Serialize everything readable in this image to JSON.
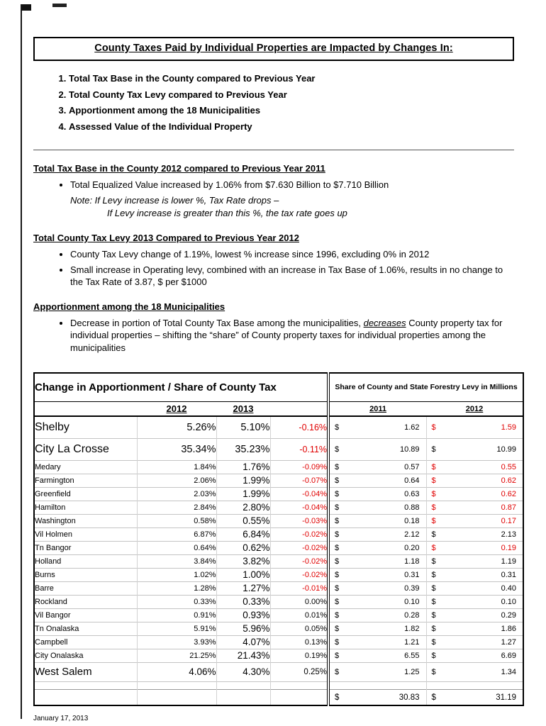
{
  "title": "County Taxes Paid by Individual Properties are Impacted by Changes In:",
  "impact_list": [
    "Total Tax Base in the County compared to Previous Year",
    "Total County Tax Levy compared to Previous Year",
    "Apportionment among the 18 Municipalities",
    "Assessed Value of the Individual Property"
  ],
  "tax_base": {
    "heading": "Total Tax Base in the County 2012 compared to Previous Year 2011",
    "bullet": "Total Equalized Value increased by 1.06% from $7.630 Billion to $7.710 Billion",
    "note_line1": "Note:  If Levy increase is lower %, Tax Rate drops –",
    "note_line2": "If Levy increase is greater than this %, the tax rate goes up"
  },
  "tax_levy": {
    "heading": "Total County Tax Levy 2013 Compared to Previous Year 2012",
    "bullets": [
      "County Tax Levy change of 1.19%, lowest % increase since 1996, excluding 0% in 2012",
      "Small increase in Operating levy, combined with an increase in Tax Base of 1.06%, results in no change to the Tax Rate of 3.87,  $ per $1000"
    ]
  },
  "apportionment": {
    "heading": "Apportionment among the 18 Municipalities",
    "bullet_pre": "Decrease in portion of Total County Tax Base among the municipalities, ",
    "bullet_em": "decreases",
    "bullet_post": " County property tax for individual properties – shifting the “share” of County property taxes for individual properties among the municipalities"
  },
  "table": {
    "left_title": "Change in Apportionment / Share of County Tax",
    "right_title": "Share of County and State Forestry Levy in Millions",
    "left_years": [
      "2012",
      "2013"
    ],
    "right_years": [
      "2011",
      "2012"
    ],
    "currency_symbol": "$",
    "rows": [
      {
        "name": "Shelby",
        "p12": "5.26%",
        "p13": "5.10%",
        "chg": "-0.16%",
        "l11": "1.62",
        "l12": "1.59",
        "size": "xl"
      },
      {
        "name": "City La Crosse",
        "p12": "35.34%",
        "p13": "35.23%",
        "chg": "-0.11%",
        "l11": "10.89",
        "l12": "10.99",
        "size": "xl"
      },
      {
        "name": "Medary",
        "p12": "1.84%",
        "p13": "1.76%",
        "chg": "-0.09%",
        "l11": "0.57",
        "l12": "0.55",
        "size": "sm"
      },
      {
        "name": "Farmington",
        "p12": "2.06%",
        "p13": "1.99%",
        "chg": "-0.07%",
        "l11": "0.64",
        "l12": "0.62",
        "size": "sm"
      },
      {
        "name": "Greenfield",
        "p12": "2.03%",
        "p13": "1.99%",
        "chg": "-0.04%",
        "l11": "0.63",
        "l12": "0.62",
        "size": "sm"
      },
      {
        "name": "Hamilton",
        "p12": "2.84%",
        "p13": "2.80%",
        "chg": "-0.04%",
        "l11": "0.88",
        "l12": "0.87",
        "size": "sm"
      },
      {
        "name": "Washington",
        "p12": "0.58%",
        "p13": "0.55%",
        "chg": "-0.03%",
        "l11": "0.18",
        "l12": "0.17",
        "size": "sm"
      },
      {
        "name": "Vil Holmen",
        "p12": "6.87%",
        "p13": "6.84%",
        "chg": "-0.02%",
        "l11": "2.12",
        "l12": "2.13",
        "size": "sm"
      },
      {
        "name": "Tn Bangor",
        "p12": "0.64%",
        "p13": "0.62%",
        "chg": "-0.02%",
        "l11": "0.20",
        "l12": "0.19",
        "size": "sm"
      },
      {
        "name": "Holland",
        "p12": "3.84%",
        "p13": "3.82%",
        "chg": "-0.02%",
        "l11": "1.18",
        "l12": "1.19",
        "size": "sm"
      },
      {
        "name": "Burns",
        "p12": "1.02%",
        "p13": "1.00%",
        "chg": "-0.02%",
        "l11": "0.31",
        "l12": "0.31",
        "size": "sm"
      },
      {
        "name": "Barre",
        "p12": "1.28%",
        "p13": "1.27%",
        "chg": "-0.01%",
        "l11": "0.39",
        "l12": "0.40",
        "size": "sm"
      },
      {
        "name": "Rockland",
        "p12": "0.33%",
        "p13": "0.33%",
        "chg": "0.00%",
        "l11": "0.10",
        "l12": "0.10",
        "size": "sm"
      },
      {
        "name": "Vil Bangor",
        "p12": "0.91%",
        "p13": "0.93%",
        "chg": "0.01%",
        "l11": "0.28",
        "l12": "0.29",
        "size": "sm"
      },
      {
        "name": "Tn Onalaska",
        "p12": "5.91%",
        "p13": "5.96%",
        "chg": "0.05%",
        "l11": "1.82",
        "l12": "1.86",
        "size": "sm"
      },
      {
        "name": "Campbell",
        "p12": "3.93%",
        "p13": "4.07%",
        "chg": "0.13%",
        "l11": "1.21",
        "l12": "1.27",
        "size": "sm"
      },
      {
        "name": "City Onalaska",
        "p12": "21.25%",
        "p13": "21.43%",
        "chg": "0.19%",
        "l11": "6.55",
        "l12": "6.69",
        "size": "sm"
      },
      {
        "name": "West Salem",
        "p12": "4.06%",
        "p13": "4.30%",
        "chg": "0.25%",
        "l11": "1.25",
        "l12": "1.34",
        "size": "lg"
      }
    ],
    "total": {
      "levy2011": "30.83",
      "levy2012": "31.19"
    }
  },
  "footer": "January 17, 2013",
  "colors": {
    "negative": "#e00000"
  }
}
